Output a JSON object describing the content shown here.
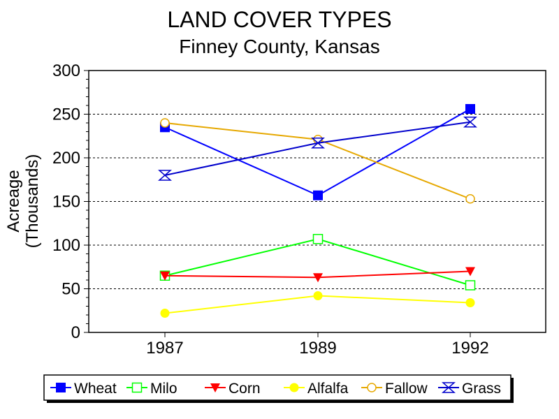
{
  "chart_data": {
    "type": "line",
    "title": "LAND COVER TYPES",
    "subtitle": "Finney County, Kansas",
    "ylabel_line1": "Acreage",
    "ylabel_line2": "(Thousands)",
    "xlabel": "",
    "categories": [
      "1987",
      "1989",
      "1992"
    ],
    "ylim": [
      0,
      300
    ],
    "yticks": [
      0,
      50,
      100,
      150,
      200,
      250,
      300
    ],
    "grid": "horizontal dashed",
    "legend_placement": "bottom",
    "series": [
      {
        "name": "Wheat",
        "values": [
          235,
          157,
          256
        ],
        "color": "#0000ff",
        "marker": "filled-square"
      },
      {
        "name": "Milo",
        "values": [
          65,
          107,
          54
        ],
        "color": "#00ff00",
        "marker": "open-square"
      },
      {
        "name": "Corn",
        "values": [
          65,
          63,
          70
        ],
        "color": "#ff0000",
        "marker": "filled-triangle-down"
      },
      {
        "name": "Alfalfa",
        "values": [
          22,
          42,
          34
        ],
        "color": "#ffff00",
        "marker": "filled-circle"
      },
      {
        "name": "Fallow",
        "values": [
          240,
          221,
          153
        ],
        "color": "#e6a800",
        "marker": "open-circle"
      },
      {
        "name": "Grass",
        "values": [
          180,
          217,
          241
        ],
        "color": "#0000cc",
        "marker": "hourglass-x"
      }
    ]
  }
}
